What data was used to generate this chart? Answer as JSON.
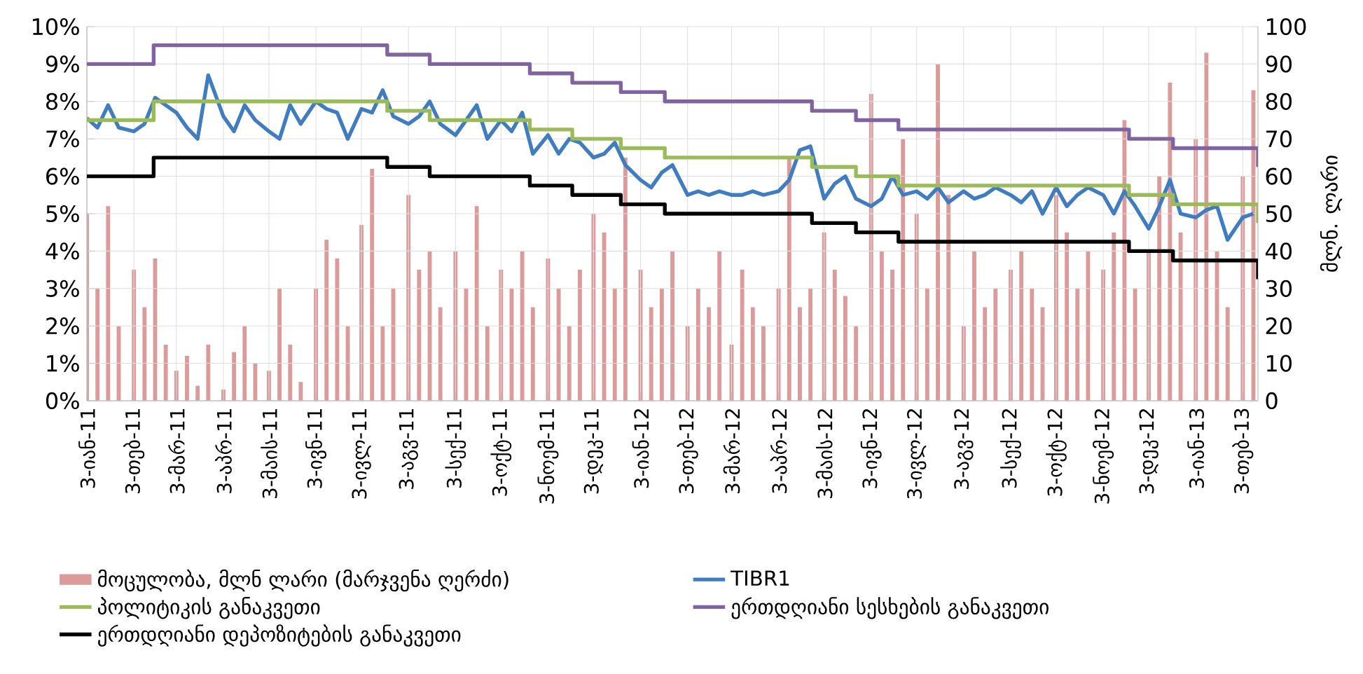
{
  "chart_data": {
    "type": "line",
    "y2label": "მლნ. ლარი",
    "legend": "bottom",
    "grid": true,
    "x": [
      "2011-01-03",
      "2011-01-10",
      "2011-01-17",
      "2011-01-24",
      "2011-02-03",
      "2011-02-10",
      "2011-02-17",
      "2011-02-24",
      "2011-03-03",
      "2011-03-10",
      "2011-03-17",
      "2011-03-24",
      "2011-04-03",
      "2011-04-10",
      "2011-04-17",
      "2011-04-24",
      "2011-05-03",
      "2011-05-10",
      "2011-05-17",
      "2011-05-24",
      "2011-06-03",
      "2011-06-10",
      "2011-06-17",
      "2011-06-24",
      "2011-07-03",
      "2011-07-10",
      "2011-07-17",
      "2011-07-24",
      "2011-08-03",
      "2011-08-10",
      "2011-08-17",
      "2011-08-24",
      "2011-09-03",
      "2011-09-10",
      "2011-09-17",
      "2011-09-24",
      "2011-10-03",
      "2011-10-10",
      "2011-10-17",
      "2011-10-24",
      "2011-11-03",
      "2011-11-10",
      "2011-11-17",
      "2011-11-24",
      "2011-12-03",
      "2011-12-10",
      "2011-12-17",
      "2011-12-24",
      "2012-01-03",
      "2012-01-10",
      "2012-01-17",
      "2012-01-24",
      "2012-02-03",
      "2012-02-10",
      "2012-02-17",
      "2012-02-24",
      "2012-03-03",
      "2012-03-10",
      "2012-03-17",
      "2012-03-24",
      "2012-04-03",
      "2012-04-10",
      "2012-04-17",
      "2012-04-24",
      "2012-05-03",
      "2012-05-10",
      "2012-05-17",
      "2012-05-24",
      "2012-06-03",
      "2012-06-10",
      "2012-06-17",
      "2012-06-24",
      "2012-07-03",
      "2012-07-10",
      "2012-07-17",
      "2012-07-24",
      "2012-08-03",
      "2012-08-10",
      "2012-08-17",
      "2012-08-24",
      "2012-09-03",
      "2012-09-10",
      "2012-09-17",
      "2012-09-24",
      "2012-10-03",
      "2012-10-10",
      "2012-10-17",
      "2012-10-24",
      "2012-11-03",
      "2012-11-10",
      "2012-11-17",
      "2012-11-24",
      "2012-12-03",
      "2012-12-10",
      "2012-12-17",
      "2012-12-24",
      "2013-01-03",
      "2013-01-10",
      "2013-01-17",
      "2013-01-24",
      "2013-02-03",
      "2013-02-10"
    ],
    "series": [
      {
        "name": "მოცულობა, მლნ ლარი (მარჯვენა ღერძი)",
        "type": "bar",
        "axis": "y2",
        "color": "#dc9b9b",
        "values": [
          50,
          30,
          52,
          20,
          35,
          25,
          38,
          15,
          8,
          12,
          4,
          15,
          3,
          13,
          20,
          10,
          8,
          30,
          15,
          5,
          30,
          43,
          38,
          20,
          47,
          62,
          20,
          30,
          55,
          35,
          40,
          25,
          40,
          30,
          52,
          20,
          35,
          30,
          40,
          25,
          38,
          30,
          20,
          35,
          50,
          45,
          30,
          65,
          35,
          25,
          30,
          40,
          20,
          30,
          25,
          40,
          15,
          35,
          25,
          20,
          30,
          65,
          25,
          30,
          45,
          35,
          28,
          20,
          82,
          40,
          35,
          70,
          50,
          30,
          90,
          55,
          20,
          40,
          25,
          30,
          35,
          40,
          30,
          25,
          55,
          45,
          30,
          40,
          35,
          45,
          75,
          30,
          40,
          60,
          85,
          45,
          70,
          93,
          40,
          25,
          60,
          83
        ]
      },
      {
        "name": "TIBR1",
        "color": "#3f7cc0",
        "values": [
          7.55,
          7.3,
          7.9,
          7.3,
          7.2,
          7.4,
          8.1,
          7.9,
          7.7,
          7.3,
          7.0,
          8.7,
          7.6,
          7.2,
          7.9,
          7.5,
          7.2,
          7.0,
          7.9,
          7.4,
          8.0,
          7.8,
          7.7,
          7.0,
          7.8,
          7.7,
          8.3,
          7.6,
          7.4,
          7.6,
          8.0,
          7.4,
          7.1,
          7.5,
          7.9,
          7.0,
          7.5,
          7.2,
          7.7,
          6.6,
          7.1,
          6.6,
          7.0,
          6.9,
          6.5,
          6.6,
          6.9,
          6.3,
          5.9,
          5.7,
          6.1,
          6.3,
          5.5,
          5.6,
          5.5,
          5.6,
          5.5,
          5.5,
          5.6,
          5.5,
          5.6,
          5.9,
          6.7,
          6.8,
          5.4,
          5.8,
          6.0,
          5.4,
          5.2,
          5.4,
          6.0,
          5.5,
          5.6,
          5.4,
          5.7,
          5.3,
          5.6,
          5.4,
          5.5,
          5.7,
          5.5,
          5.3,
          5.6,
          5.0,
          5.7,
          5.2,
          5.5,
          5.7,
          5.5,
          5.0,
          5.6,
          5.2,
          4.6,
          5.2,
          5.9,
          5.0,
          4.9,
          5.1,
          5.2,
          4.3,
          4.9,
          5.0
        ]
      },
      {
        "name": "პოლიტიკის განაკვეთი",
        "type": "step",
        "color": "#9bbb59",
        "x": [
          "2011-01-03",
          "2011-02-16",
          "2011-07-20",
          "2011-08-17",
          "2011-10-22",
          "2011-11-19",
          "2011-12-21",
          "2012-01-19",
          "2012-04-25",
          "2012-05-24",
          "2012-06-21",
          "2012-11-20",
          "2012-12-19",
          "2013-02-11",
          "2013-02-13"
        ],
        "values": [
          7.5,
          8.0,
          7.75,
          7.5,
          7.25,
          7.0,
          6.75,
          6.5,
          6.25,
          6.0,
          5.75,
          5.5,
          5.25,
          5.25,
          4.75
        ]
      },
      {
        "name": "ერთდღიანი სესხების განაკვეთი",
        "type": "step",
        "color": "#8064a2",
        "x": [
          "2011-01-03",
          "2011-02-16",
          "2011-07-20",
          "2011-08-17",
          "2011-10-22",
          "2011-11-19",
          "2011-12-21",
          "2012-01-19",
          "2012-04-25",
          "2012-05-24",
          "2012-06-21",
          "2012-11-20",
          "2012-12-19",
          "2013-02-11",
          "2013-02-13"
        ],
        "values": [
          9.0,
          9.5,
          9.25,
          9.0,
          8.75,
          8.5,
          8.25,
          8.0,
          7.75,
          7.5,
          7.25,
          7.0,
          6.75,
          6.75,
          6.25
        ]
      },
      {
        "name": "ერთდღიანი დეპოზიტების განაკვეთი",
        "type": "step",
        "color": "#000000",
        "x": [
          "2011-01-03",
          "2011-02-16",
          "2011-07-20",
          "2011-08-17",
          "2011-10-22",
          "2011-11-19",
          "2011-12-21",
          "2012-01-19",
          "2012-04-25",
          "2012-05-24",
          "2012-06-21",
          "2012-11-20",
          "2012-12-19",
          "2013-02-11",
          "2013-02-13"
        ],
        "values": [
          6.0,
          6.5,
          6.25,
          6.0,
          5.75,
          5.5,
          5.25,
          5.0,
          4.75,
          4.5,
          4.25,
          4.0,
          3.75,
          3.75,
          3.25
        ]
      }
    ],
    "xlim": [
      "2011-01-03",
      "2013-02-13"
    ],
    "xticks": [
      {
        "value": "2011-01-03",
        "label": "3-იან-11"
      },
      {
        "value": "2011-02-03",
        "label": "3-თებ-11"
      },
      {
        "value": "2011-03-03",
        "label": "3-მარ-11"
      },
      {
        "value": "2011-04-03",
        "label": "3-აპრ-11"
      },
      {
        "value": "2011-05-03",
        "label": "3-მაის-11"
      },
      {
        "value": "2011-06-03",
        "label": "3-ივნ-11"
      },
      {
        "value": "2011-07-03",
        "label": "3-ივლ-11"
      },
      {
        "value": "2011-08-03",
        "label": "3-აგვ-11"
      },
      {
        "value": "2011-09-03",
        "label": "3-სექ-11"
      },
      {
        "value": "2011-10-03",
        "label": "3-ოქტ-11"
      },
      {
        "value": "2011-11-03",
        "label": "3-ნოემ-11"
      },
      {
        "value": "2011-12-03",
        "label": "3-დეკ-11"
      },
      {
        "value": "2012-01-03",
        "label": "3-იან-12"
      },
      {
        "value": "2012-02-03",
        "label": "3-თებ-12"
      },
      {
        "value": "2012-03-03",
        "label": "3-მარ-12"
      },
      {
        "value": "2012-04-03",
        "label": "3-აპრ-12"
      },
      {
        "value": "2012-05-03",
        "label": "3-მაის-12"
      },
      {
        "value": "2012-06-03",
        "label": "3-ივნ-12"
      },
      {
        "value": "2012-07-03",
        "label": "3-ივლ-12"
      },
      {
        "value": "2012-08-03",
        "label": "3-აგვ-12"
      },
      {
        "value": "2012-09-03",
        "label": "3-სექ-12"
      },
      {
        "value": "2012-10-03",
        "label": "3-ოქტ-12"
      },
      {
        "value": "2012-11-03",
        "label": "3-ნოემ-12"
      },
      {
        "value": "2012-12-03",
        "label": "3-დეკ-12"
      },
      {
        "value": "2013-01-03",
        "label": "3-იან-13"
      },
      {
        "value": "2013-02-03",
        "label": "3-თებ-13"
      }
    ],
    "ylim": [
      0,
      10
    ],
    "yticks": [
      {
        "value": 0,
        "label": "0%"
      },
      {
        "value": 1,
        "label": "1%"
      },
      {
        "value": 2,
        "label": "2%"
      },
      {
        "value": 3,
        "label": "3%"
      },
      {
        "value": 4,
        "label": "4%"
      },
      {
        "value": 5,
        "label": "5%"
      },
      {
        "value": 6,
        "label": "6%"
      },
      {
        "value": 7,
        "label": "7%"
      },
      {
        "value": 8,
        "label": "8%"
      },
      {
        "value": 9,
        "label": "9%"
      },
      {
        "value": 10,
        "label": "10%"
      }
    ],
    "y2lim": [
      0,
      100
    ],
    "y2ticks": [
      0,
      10,
      20,
      30,
      40,
      50,
      60,
      70,
      80,
      90,
      100
    ]
  }
}
